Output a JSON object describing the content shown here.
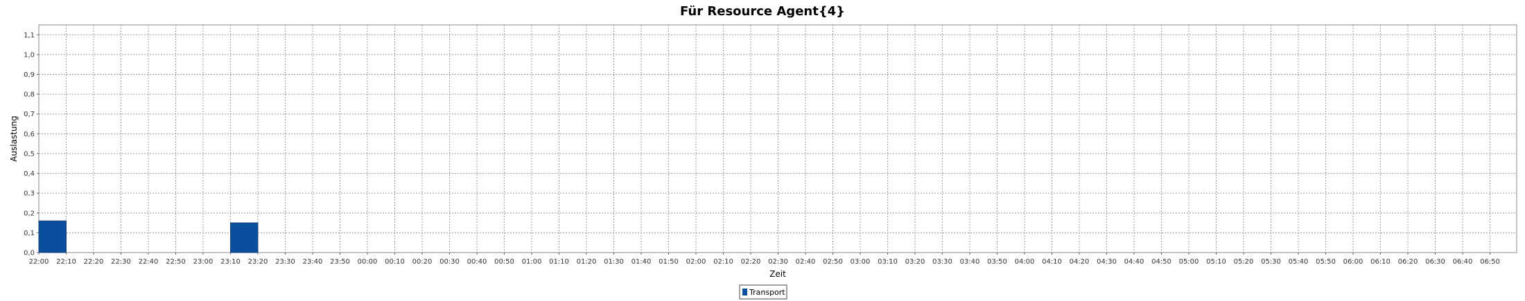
{
  "chart_data": {
    "type": "bar",
    "title": "Für Resource Agent{4}",
    "xlabel": "Zeit",
    "ylabel": "Auslastung",
    "ylim": [
      0,
      1.15
    ],
    "y_ticks": [
      "0,0",
      "0,1",
      "0,2",
      "0,3",
      "0,4",
      "0,5",
      "0,6",
      "0,7",
      "0,8",
      "0,9",
      "1,0",
      "1,1"
    ],
    "x_ticks": [
      "22:00",
      "22:10",
      "22:20",
      "22:30",
      "22:40",
      "22:50",
      "23:00",
      "23:10",
      "23:20",
      "23:30",
      "23:40",
      "23:50",
      "00:00",
      "00:10",
      "00:20",
      "00:30",
      "00:40",
      "00:50",
      "01:00",
      "01:10",
      "01:20",
      "01:30",
      "01:40",
      "01:50",
      "02:00",
      "02:10",
      "02:20",
      "02:30",
      "02:40",
      "02:50",
      "03:00",
      "03:10",
      "03:20",
      "03:30",
      "03:40",
      "03:50",
      "04:00",
      "04:10",
      "04:20",
      "04:30",
      "04:40",
      "04:50",
      "05:00",
      "05:10",
      "05:20",
      "05:30",
      "05:40",
      "05:50",
      "06:00",
      "06:10",
      "06:20",
      "06:30",
      "06:40",
      "06:50"
    ],
    "grid": true,
    "legend_position": "bottom-center",
    "series": [
      {
        "name": "Transport",
        "color": "#0a4f9e",
        "bars": [
          {
            "start": "22:00",
            "end": "22:10",
            "value": 0.16
          },
          {
            "start": "23:10",
            "end": "23:20",
            "value": 0.15
          }
        ]
      }
    ]
  }
}
